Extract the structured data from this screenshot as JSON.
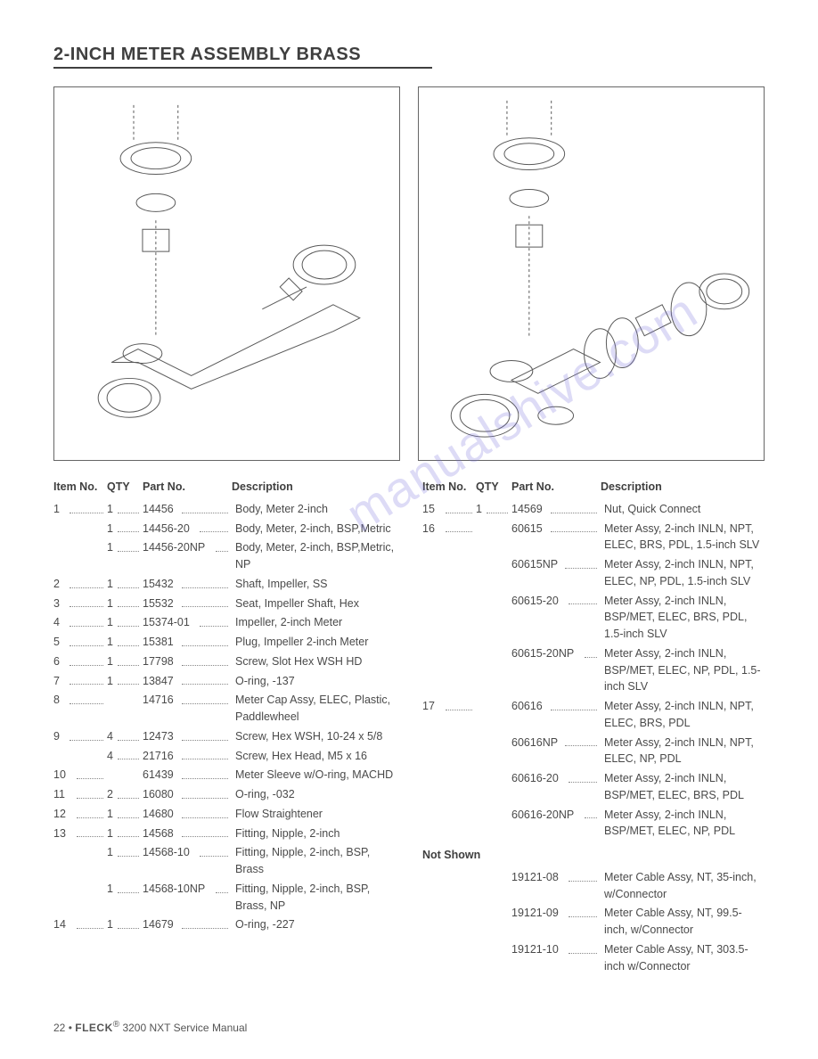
{
  "page": {
    "title": "2-INCH METER ASSEMBLY BRASS",
    "footer_page": "22",
    "footer_bullet": " • ",
    "footer_brand": "FLECK",
    "footer_reg": "®",
    "footer_manual": " 3200 NXT Service Manual",
    "watermark": "manualshive.com"
  },
  "headers": {
    "item": "Item No.",
    "qty": "QTY",
    "part": "Part No.",
    "desc": "Description"
  },
  "diagram": {
    "stroke": "#5a5a5a",
    "stroke_width": 1,
    "border_color": "#666666"
  },
  "left_rows": [
    {
      "item": "1",
      "qty": "1",
      "part": "14456",
      "desc": "Body, Meter 2-inch",
      "pl": 44
    },
    {
      "item": "",
      "qty": "1",
      "part": "14456-20",
      "desc": "Body, Meter, 2-inch, BSP,Metric",
      "pl": 64
    },
    {
      "item": "",
      "qty": "1",
      "part": "14456-20NP",
      "desc": "Body, Meter, 2-inch, BSP,Metric, NP",
      "pl": 82
    },
    {
      "item": "2",
      "qty": "1",
      "part": "15432",
      "desc": "Shaft, Impeller, SS",
      "pl": 44
    },
    {
      "item": "3",
      "qty": "1",
      "part": "15532",
      "desc": "Seat, Impeller Shaft, Hex",
      "pl": 44
    },
    {
      "item": "4",
      "qty": "1",
      "part": "15374-01",
      "desc": "Impeller, 2-inch Meter",
      "pl": 64
    },
    {
      "item": "5",
      "qty": "1",
      "part": "15381",
      "desc": "Plug, Impeller 2-inch Meter",
      "pl": 44
    },
    {
      "item": "6",
      "qty": "1",
      "part": "17798",
      "desc": "Screw, Slot Hex WSH HD",
      "pl": 44
    },
    {
      "item": "7",
      "qty": "1",
      "part": "13847",
      "desc": "O-ring, -137",
      "pl": 44
    },
    {
      "item": "8",
      "qty": "",
      "part": "14716",
      "desc": "Meter Cap Assy, ELEC, Plastic, Paddlewheel",
      "pl": 44
    },
    {
      "item": "9",
      "qty": "4",
      "part": "12473",
      "desc": "Screw, Hex WSH, 10-24 x 5/8",
      "pl": 44
    },
    {
      "item": "",
      "qty": "4",
      "part": "21716",
      "desc": "Screw, Hex Head, M5 x 16",
      "pl": 44
    },
    {
      "item": "10",
      "qty": "",
      "part": "61439",
      "desc": "Meter Sleeve w/O-ring, MACHD",
      "pl": 44
    },
    {
      "item": "11",
      "qty": "2",
      "part": "16080",
      "desc": "O-ring, -032",
      "pl": 44
    },
    {
      "item": "12",
      "qty": "1",
      "part": "14680",
      "desc": "Flow Straightener",
      "pl": 44
    },
    {
      "item": "13",
      "qty": "1",
      "part": "14568",
      "desc": "Fitting, Nipple, 2-inch",
      "pl": 44
    },
    {
      "item": "",
      "qty": "1",
      "part": "14568-10",
      "desc": "Fitting, Nipple, 2-inch, BSP, Brass",
      "pl": 64
    },
    {
      "item": "",
      "qty": "1",
      "part": "14568-10NP",
      "desc": "Fitting, Nipple, 2-inch, BSP, Brass, NP",
      "pl": 82
    },
    {
      "item": "14",
      "qty": "1",
      "part": "14679",
      "desc": "O-ring, -227",
      "pl": 44
    }
  ],
  "right_rows": [
    {
      "item": "15",
      "qty": "1",
      "part": "14569",
      "desc": "Nut, Quick Connect",
      "pl": 44
    },
    {
      "item": "16",
      "qty": "",
      "part": "60615",
      "desc": "Meter Assy, 2-inch INLN, NPT, ELEC, BRS, PDL, 1.5-inch SLV",
      "pl": 44
    },
    {
      "item": "",
      "qty": "",
      "part": "60615NP",
      "desc": "Meter Assy, 2-inch INLN, NPT, ELEC, NP, PDL, 1.5-inch SLV",
      "pl": 60
    },
    {
      "item": "",
      "qty": "",
      "part": "60615-20",
      "desc": "Meter Assy, 2-inch INLN, BSP/MET, ELEC, BRS, PDL, 1.5-inch SLV",
      "pl": 64
    },
    {
      "item": "",
      "qty": "",
      "part": "60615-20NP",
      "desc": "Meter Assy, 2-inch INLN, BSP/MET, ELEC, NP, PDL, 1.5-inch SLV",
      "pl": 82
    },
    {
      "item": "17",
      "qty": "",
      "part": "60616",
      "desc": "Meter Assy, 2-inch INLN, NPT, ELEC, BRS, PDL",
      "pl": 44
    },
    {
      "item": "",
      "qty": "",
      "part": "60616NP",
      "desc": "Meter Assy, 2-inch INLN, NPT, ELEC, NP, PDL",
      "pl": 60
    },
    {
      "item": "",
      "qty": "",
      "part": "60616-20",
      "desc": "Meter Assy, 2-inch INLN, BSP/MET, ELEC, BRS, PDL",
      "pl": 64
    },
    {
      "item": "",
      "qty": "",
      "part": "60616-20NP",
      "desc": "Meter Assy, 2-inch INLN, BSP/MET, ELEC, NP, PDL",
      "pl": 82
    }
  ],
  "not_shown_label": "Not Shown",
  "not_shown_rows": [
    {
      "item": "",
      "qty": "",
      "part": "19121-08",
      "desc": "Meter Cable Assy, NT, 35-inch, w/Connector",
      "pl": 64
    },
    {
      "item": "",
      "qty": "",
      "part": "19121-09",
      "desc": "Meter Cable Assy, NT, 99.5-inch, w/Connector",
      "pl": 64
    },
    {
      "item": "",
      "qty": "",
      "part": "19121-10",
      "desc": "Meter Cable Assy, NT, 303.5-inch w/Connector",
      "pl": 64
    }
  ]
}
